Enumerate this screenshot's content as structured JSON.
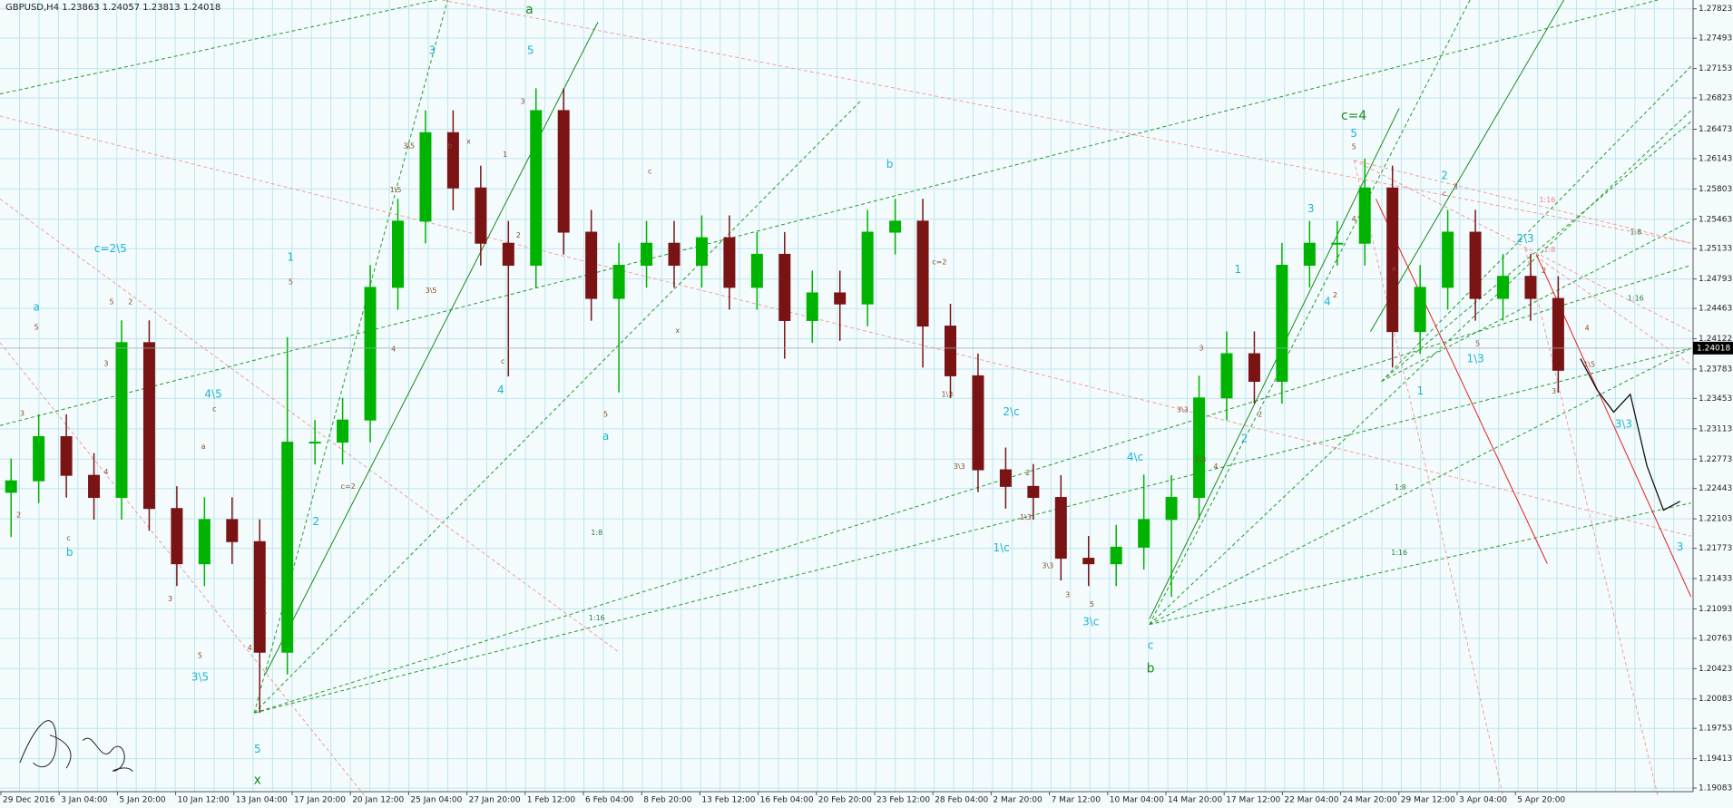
{
  "chart_data": {
    "type": "candlestick",
    "title": "GBPUSD,H4  1.23863 1.24057 1.23813 1.24018",
    "current_price": 1.24018,
    "ylim": [
      1.19043,
      1.27922
    ],
    "yticks": [
      1.27823,
      1.27493,
      1.27153,
      1.26823,
      1.26473,
      1.26143,
      1.25803,
      1.25463,
      1.25133,
      1.24793,
      1.24463,
      1.24122,
      1.23783,
      1.23453,
      1.23113,
      1.22773,
      1.22443,
      1.22103,
      1.21773,
      1.21433,
      1.21093,
      1.20763,
      1.20423,
      1.20083,
      1.19753,
      1.19413,
      1.19083
    ],
    "grid": true,
    "up_color": "#00b300",
    "down_color": "#7a1414",
    "x_labels": [
      "29 Dec 2016",
      "3 Jan 04:00",
      "5 Jan 20:00",
      "10 Jan 12:00",
      "13 Jan 04:00",
      "17 Jan 20:00",
      "20 Jan 12:00",
      "25 Jan 04:00",
      "27 Jan 20:00",
      "1 Feb 12:00",
      "6 Feb 04:00",
      "8 Feb 20:00",
      "13 Feb 12:00",
      "16 Feb 04:00",
      "20 Feb 20:00",
      "23 Feb 12:00",
      "28 Feb 04:00",
      "2 Mar 20:00",
      "7 Mar 12:00",
      "10 Mar 04:00",
      "14 Mar 20:00",
      "17 Mar 12:00",
      "22 Mar 04:00",
      "24 Mar 20:00",
      "29 Mar 12:00",
      "3 Apr 04:00",
      "5 Apr 20:00"
    ],
    "open": [
      1.224,
      1.22529,
      1.23025,
      1.22591,
      1.22343,
      1.24079,
      1.22219,
      1.21599,
      1.22095,
      1.21847,
      1.20607,
      1.22963,
      1.22963,
      1.23211,
      1.24699,
      1.25442,
      1.26434,
      1.25814,
      1.25194,
      1.24947,
      1.26682,
      1.25318,
      1.24575,
      1.24947,
      1.25194,
      1.24947,
      1.25256,
      1.24699,
      1.2507,
      1.24327,
      1.24637,
      1.24513,
      1.25318,
      1.25442,
      1.24265,
      1.23707,
      1.22653,
      1.22467,
      1.22343,
      1.21661,
      1.21599,
      1.21785,
      1.22095,
      1.22343,
      1.23459,
      1.23955,
      1.23645,
      1.24947,
      1.25194,
      1.25194,
      1.25814,
      1.24203,
      1.24699,
      1.25318,
      1.24575,
      1.24823,
      1.24575
    ],
    "high": [
      1.22779,
      1.23275,
      1.23275,
      1.22841,
      1.24329,
      1.24329,
      1.22469,
      1.22345,
      1.22345,
      1.22097,
      1.24141,
      1.23213,
      1.23461,
      1.24949,
      1.25692,
      1.26684,
      1.26684,
      1.26064,
      1.25444,
      1.26932,
      1.26932,
      1.25568,
      1.25197,
      1.25444,
      1.25444,
      1.25506,
      1.25506,
      1.2532,
      1.2532,
      1.24887,
      1.24887,
      1.25568,
      1.25692,
      1.25692,
      1.24515,
      1.23957,
      1.22903,
      1.22717,
      1.22593,
      1.21911,
      1.22035,
      1.226,
      1.22593,
      1.23709,
      1.24205,
      1.24205,
      1.25197,
      1.25444,
      1.25444,
      1.26143,
      1.26064,
      1.24949,
      1.25568,
      1.25568,
      1.25073,
      1.25073,
      1.24825
    ],
    "low": [
      1.219,
      1.22279,
      1.22341,
      1.22093,
      1.22093,
      1.21969,
      1.21349,
      1.21349,
      1.21597,
      1.19926,
      1.20357,
      1.22713,
      1.22713,
      1.22961,
      1.24449,
      1.25192,
      1.25564,
      1.24944,
      1.237,
      1.24697,
      1.25068,
      1.24325,
      1.23521,
      1.24697,
      1.24697,
      1.24697,
      1.24449,
      1.24449,
      1.239,
      1.24077,
      1.241,
      1.24263,
      1.25068,
      1.238,
      1.23457,
      1.22403,
      1.22217,
      1.22093,
      1.21411,
      1.21349,
      1.21349,
      1.21535,
      1.21227,
      1.22093,
      1.23209,
      1.23395,
      1.23395,
      1.24697,
      1.24944,
      1.24944,
      1.238,
      1.23953,
      1.24449,
      1.24325,
      1.24325,
      1.24325,
      1.23519
    ],
    "close": [
      1.22529,
      1.23025,
      1.22591,
      1.22343,
      1.24079,
      1.22219,
      1.21599,
      1.22095,
      1.21847,
      1.20607,
      1.22963,
      1.22963,
      1.23211,
      1.24699,
      1.25442,
      1.26434,
      1.25814,
      1.25194,
      1.24947,
      1.26682,
      1.25318,
      1.24575,
      1.24947,
      1.25194,
      1.24947,
      1.25256,
      1.24699,
      1.2507,
      1.24327,
      1.24637,
      1.24513,
      1.25318,
      1.25442,
      1.24265,
      1.23707,
      1.22653,
      1.22467,
      1.22343,
      1.21661,
      1.21599,
      1.21785,
      1.22095,
      1.22343,
      1.23459,
      1.23955,
      1.23645,
      1.24947,
      1.25194,
      1.25194,
      1.25814,
      1.24203,
      1.24699,
      1.25318,
      1.24575,
      1.24823,
      1.24575,
      1.23769
    ],
    "projection": [
      1.239,
      1.2355,
      1.233,
      1.235,
      1.227,
      1.222,
      1.223
    ],
    "annotations": [
      "a",
      "c=2\\5",
      "b",
      "4\\5",
      "3\\5",
      "5",
      "x",
      "1",
      "2",
      "3",
      "5",
      "a",
      "4",
      "a",
      "b",
      "2\\c",
      "1\\c",
      "4\\c",
      "3\\c",
      "c",
      "b",
      "c=4",
      "5",
      "3",
      "1",
      "4",
      "2",
      "1",
      "2",
      "2\\3",
      "1\\3",
      "3\\3",
      "3",
      "1:8",
      "1:16",
      "1:8",
      "1:16",
      "1:8",
      "1:16",
      "1:16",
      "1:8",
      "3",
      "5",
      "2",
      "c",
      "3",
      "5",
      "2",
      "4",
      "c",
      "a",
      "3",
      "5",
      "1",
      "4",
      "5",
      "c=2",
      "3\\5",
      "1\\5",
      "3\\5",
      "4",
      "x",
      "b",
      "1",
      "2",
      "3",
      "c",
      "5",
      "c",
      "x",
      "c=2",
      "1\\3",
      "3\\3",
      "2",
      "1\\3",
      "3\\3",
      "3",
      "5",
      "3\\3",
      "1\\3",
      "4",
      "3",
      "2",
      "5",
      "4",
      "2",
      "a",
      "3",
      "c",
      "5",
      "1\\5",
      "4",
      "3",
      "2"
    ]
  }
}
